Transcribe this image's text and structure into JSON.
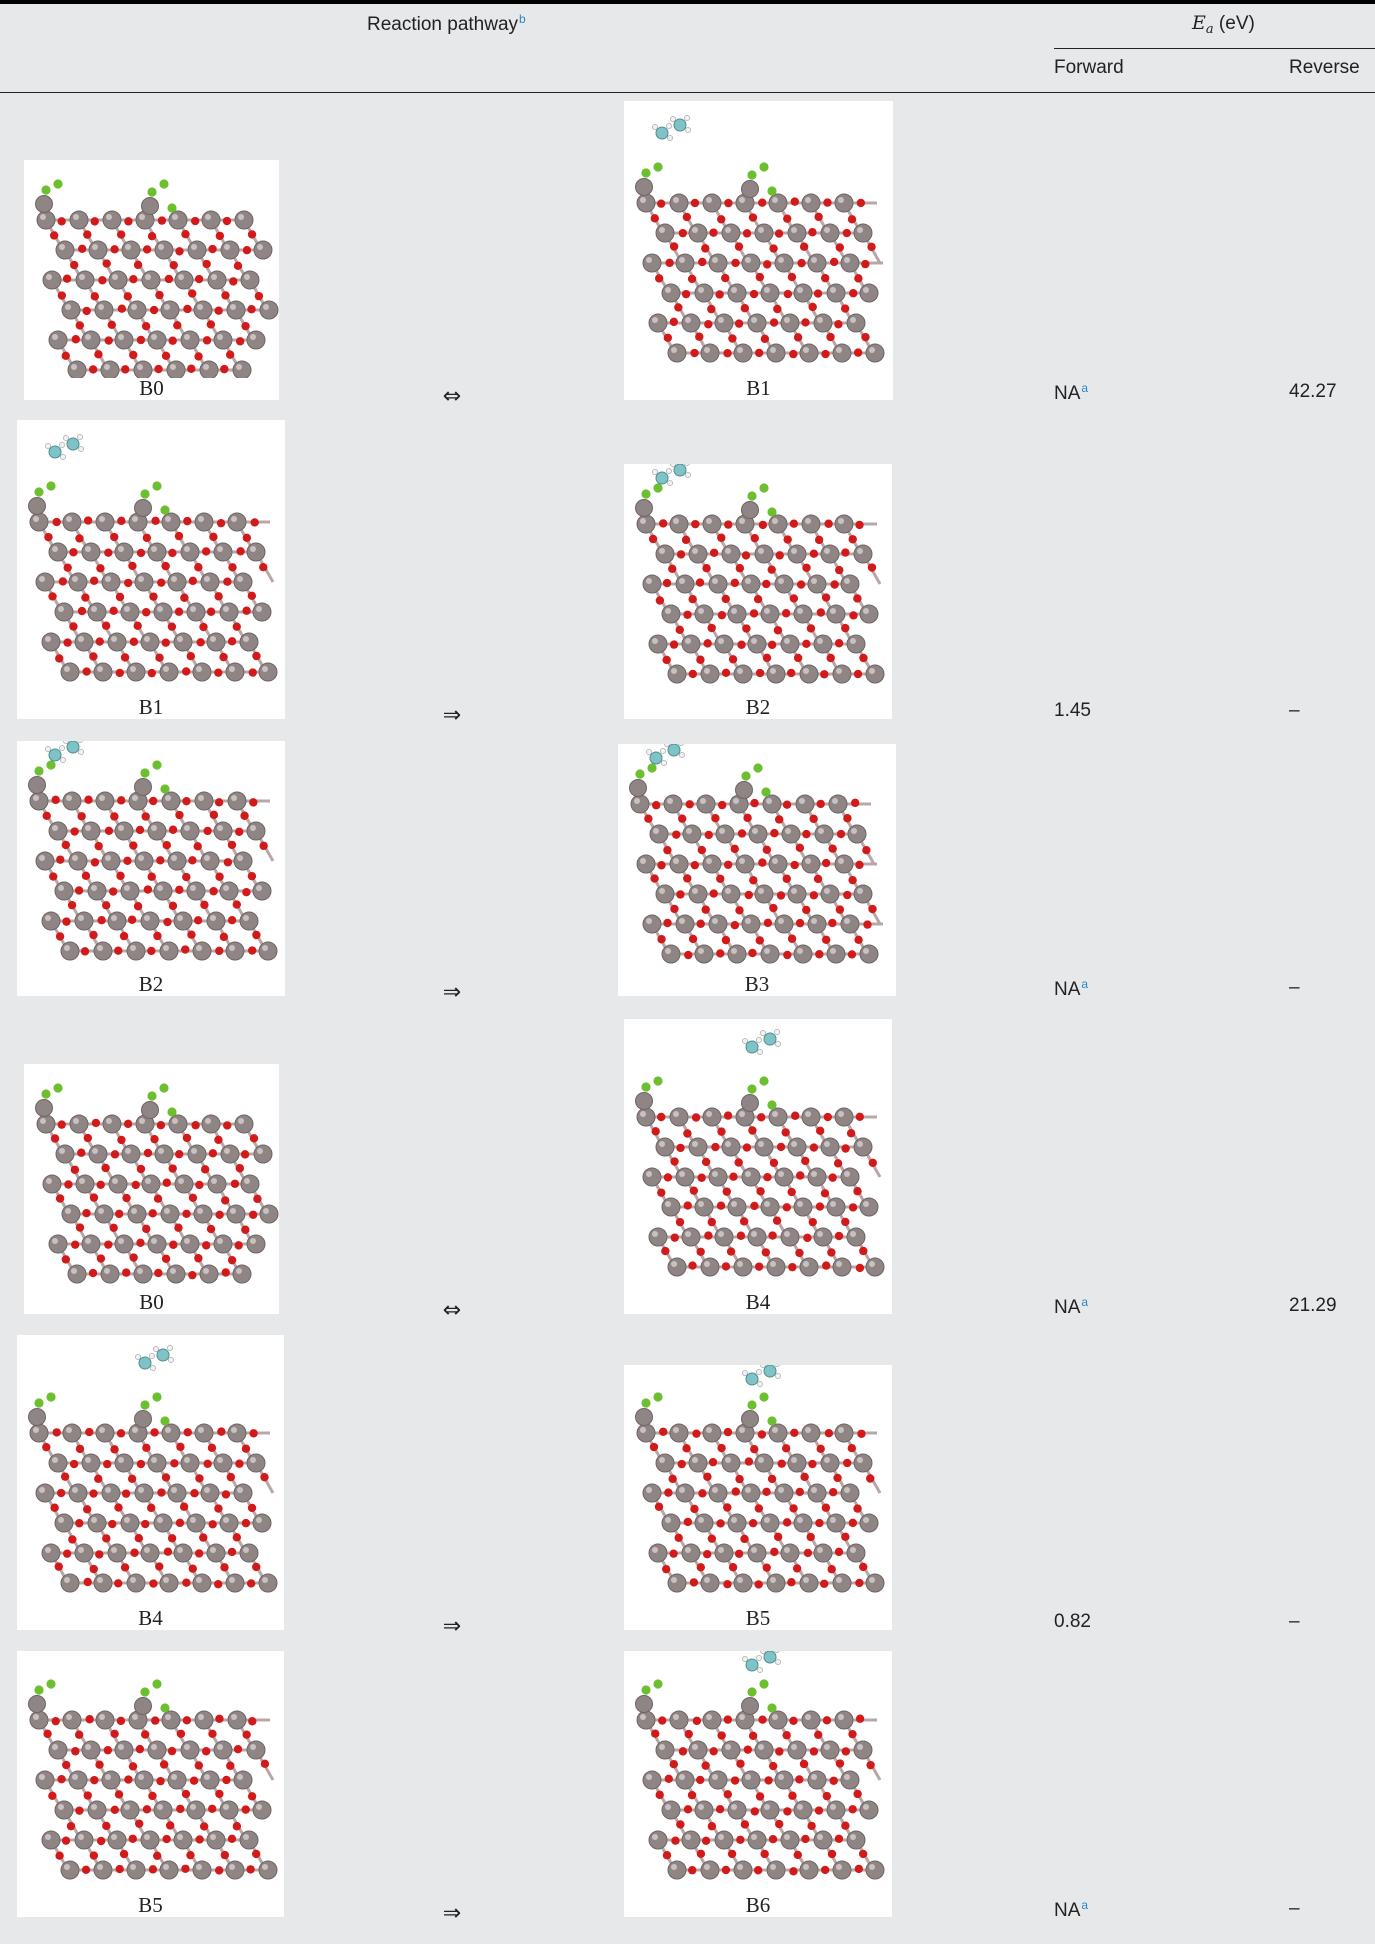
{
  "header": {
    "pathway_label": "Reaction pathway",
    "pathway_note": "b",
    "ea_symbol": "E",
    "ea_subscript": "a",
    "ea_unit": " (eV)",
    "forward_label": "Forward",
    "reverse_label": "Reverse"
  },
  "rows": [
    {
      "left": "B0",
      "arrow": "⇔",
      "right": "B1",
      "forward": "NA",
      "forward_note": "a",
      "reverse": "42.27"
    },
    {
      "left": "B1",
      "arrow": "⇒",
      "right": "B2",
      "forward": "1.45",
      "forward_note": "",
      "reverse": "–"
    },
    {
      "left": "B2",
      "arrow": "⇒",
      "right": "B3",
      "forward": "NA",
      "forward_note": "a",
      "reverse": "–"
    },
    {
      "left": "B0",
      "arrow": "⇔",
      "right": "B4",
      "forward": "NA",
      "forward_note": "a",
      "reverse": "21.29"
    },
    {
      "left": "B4",
      "arrow": "⇒",
      "right": "B5",
      "forward": "0.82",
      "forward_note": "",
      "reverse": "–"
    },
    {
      "left": "B5",
      "arrow": "⇒",
      "right": "B6",
      "forward": "NA",
      "forward_note": "a",
      "reverse": "–"
    }
  ],
  "colors": {
    "background": "#e7e8ea",
    "atom_metal": "#8f8585",
    "atom_oxygen": "#d21a1a",
    "atom_fluorine": "#6cbf2f",
    "atom_carbon": "#7fc3c6",
    "atom_hydrogen": "#f2f2f2",
    "footnote": "#2a86c8"
  }
}
